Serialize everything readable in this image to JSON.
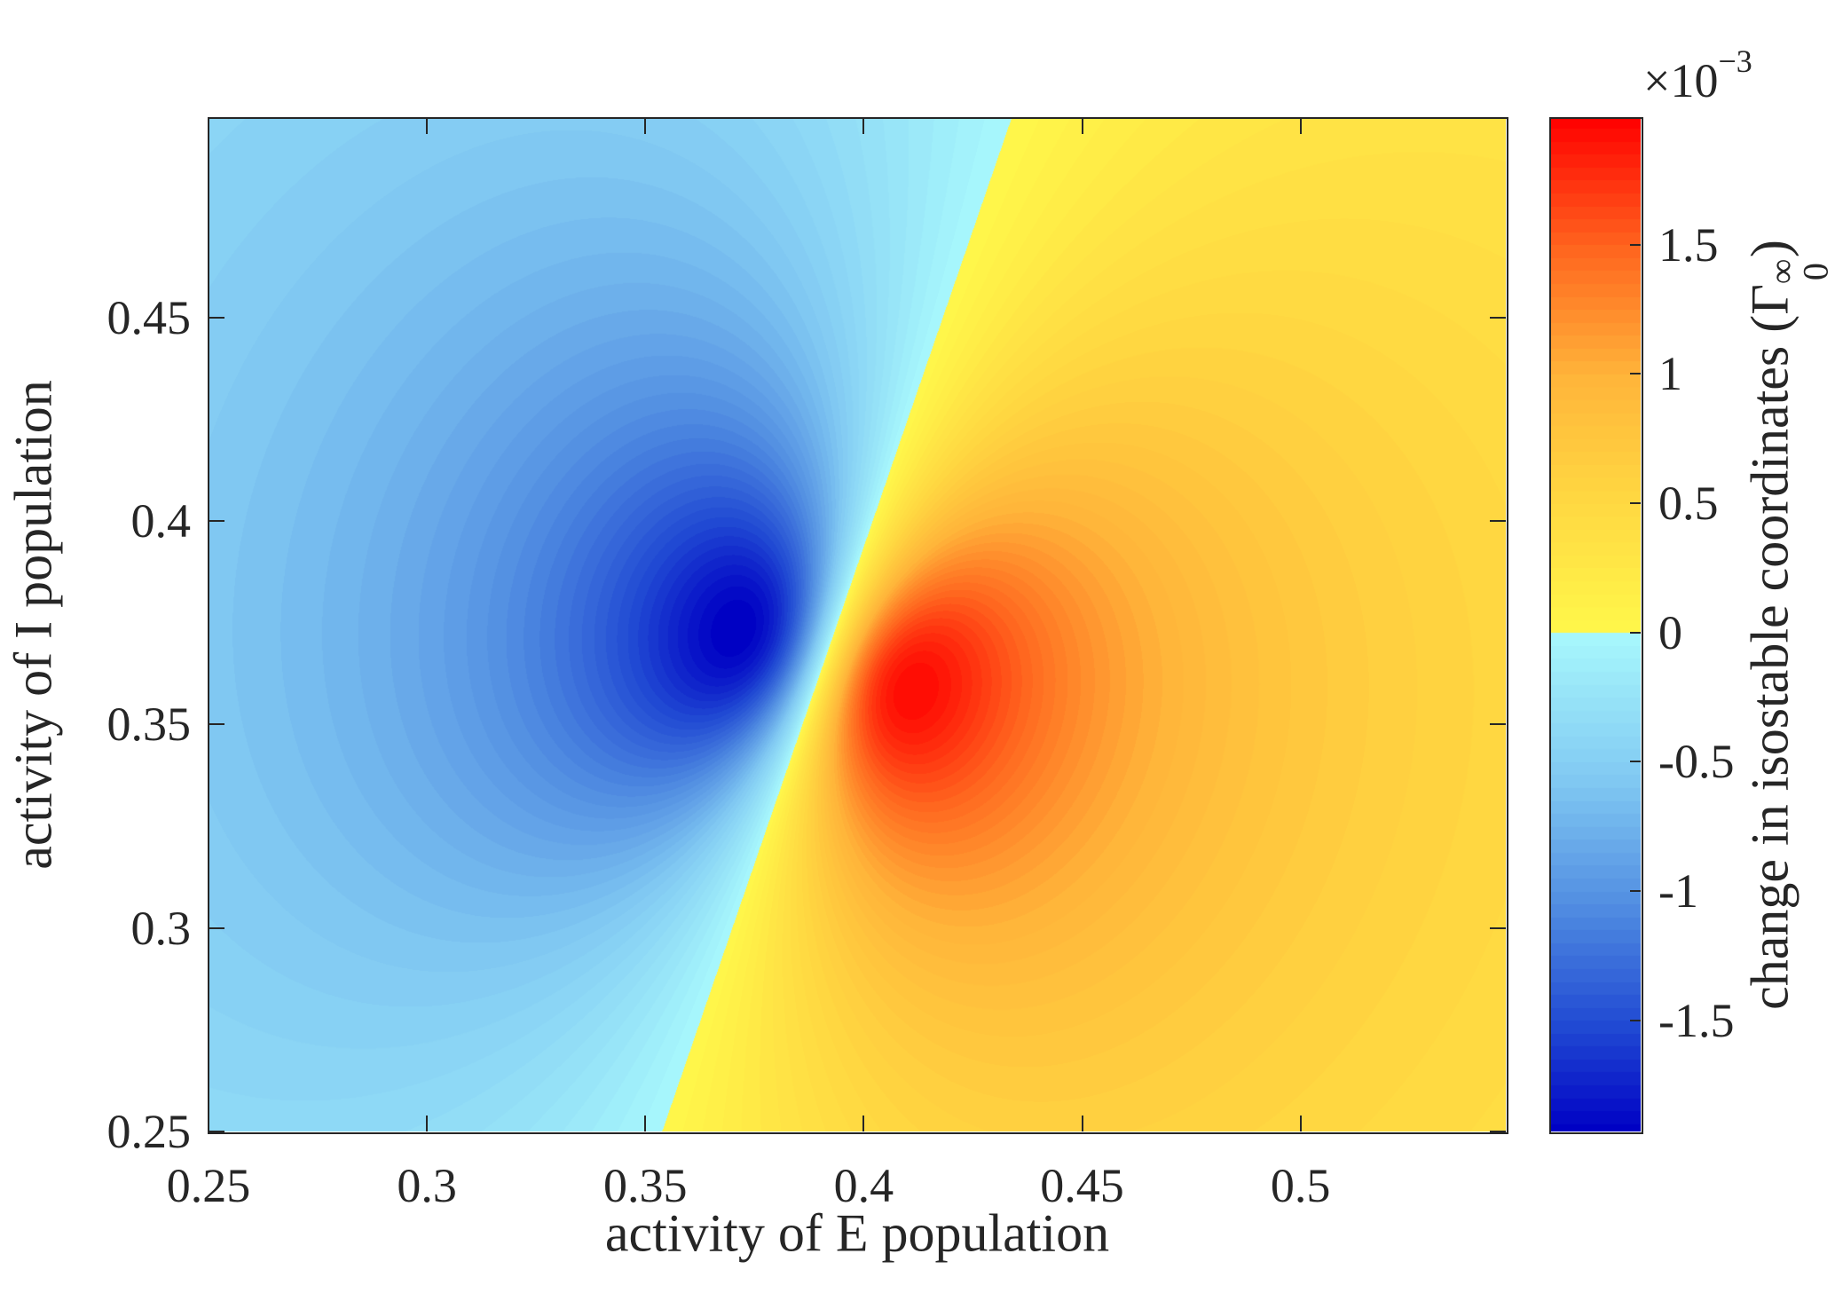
{
  "chart_data": {
    "type": "heatmap",
    "style": "filled contour, dipole-like field",
    "xlabel": "activity of E population",
    "ylabel": "activity of I population",
    "xlim": [
      0.25,
      0.547
    ],
    "ylim": [
      0.25,
      0.499
    ],
    "xticks": [
      "0.25",
      "0.3",
      "0.35",
      "0.4",
      "0.45",
      "0.5"
    ],
    "yticks": [
      "0.25",
      "0.3",
      "0.35",
      "0.4",
      "0.45"
    ],
    "colorbar": {
      "label_text": "change in isostable coordinates (",
      "label_symbol": "Γ",
      "label_sup": "∞",
      "label_sub": "0",
      "label_close": ")",
      "multiplier_base": "×10",
      "multiplier_exp": "−3",
      "clim": [
        -1.93,
        1.99
      ],
      "ticks": [
        "-1.5",
        "-1",
        "-0.5",
        "0",
        "0.5",
        "1",
        "1.5"
      ],
      "colors": {
        "min": "#0000c4",
        "neg_near_zero": "#a8f8fc",
        "pos_near_zero": "#fff84a",
        "mid_pos": "#ffb43a",
        "max": "#ff0000"
      }
    },
    "field": {
      "singular_point": [
        0.391,
        0.366
      ],
      "zero_line": [
        [
          0.352,
          0.25
        ],
        [
          0.432,
          0.499
        ]
      ],
      "minimum_near": [
        0.366,
        0.364
      ],
      "maximum_near": [
        0.413,
        0.37
      ],
      "peak_magnitude": 1.95,
      "negative_side": "left",
      "positive_side": "right"
    },
    "grid": false
  }
}
